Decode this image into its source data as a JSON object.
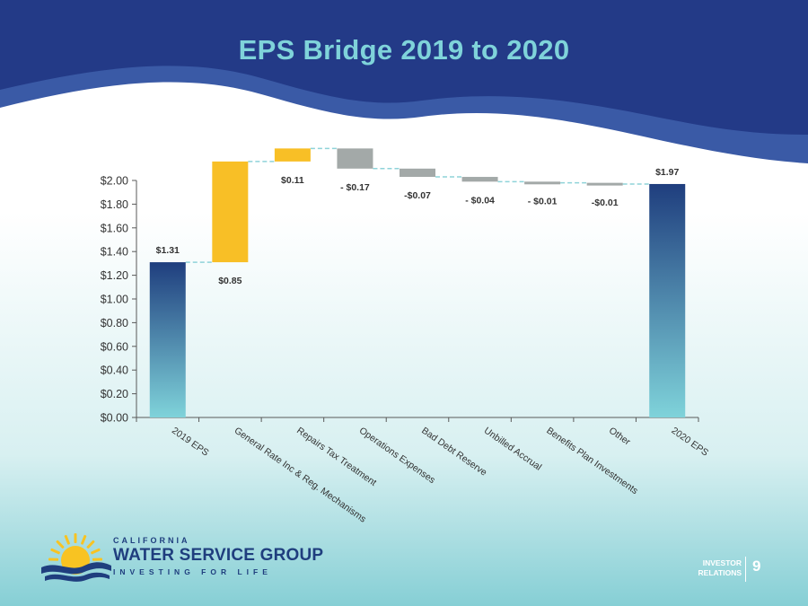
{
  "slide": {
    "title": "EPS Bridge 2019 to 2020",
    "page_number": "9",
    "footer_label_line1": "INVESTOR",
    "footer_label_line2": "RELATIONS"
  },
  "logo": {
    "line1": "CALIFORNIA",
    "line2": "WATER SERVICE GROUP",
    "line3": "INVESTING FOR LIFE"
  },
  "colors": {
    "header_dark": "#233a87",
    "title_color": "#7fd3da",
    "total_top": "#1f3e7e",
    "total_bottom": "#7fd3da",
    "increase": "#f8bf26",
    "decrease": "#a3a9a8",
    "connector": "#8fd3d9"
  },
  "chart_data": {
    "type": "bar",
    "subtype": "waterfall",
    "categories": [
      "2019 EPS",
      "General Rate Inc & Reg. Mechanisms",
      "Repairs Tax Treatment",
      "Operations Expenses",
      "Bad Debt Reserve",
      "Unbilled Accrual",
      "Benefits Plan Investments",
      "Other",
      "2020 EPS"
    ],
    "values": [
      1.31,
      0.85,
      0.11,
      -0.17,
      -0.07,
      -0.04,
      -0.01,
      -0.01,
      1.97
    ],
    "kinds": [
      "total",
      "increase",
      "increase",
      "decrease",
      "decrease",
      "decrease",
      "decrease",
      "decrease",
      "total"
    ],
    "data_labels": [
      "$1.31",
      "$0.85",
      "$0.11",
      "- $0.17",
      "-$0.07",
      "- $0.04",
      "- $0.01",
      "-$0.01",
      "$1.97"
    ],
    "ylim": [
      0,
      2.0
    ],
    "yticks": [
      "$0.00",
      "$0.20",
      "$0.40",
      "$0.60",
      "$0.80",
      "$1.00",
      "$1.20",
      "$1.40",
      "$1.60",
      "$1.80",
      "$2.00"
    ],
    "ytick_values": [
      0,
      0.2,
      0.4,
      0.6,
      0.8,
      1.0,
      1.2,
      1.4,
      1.6,
      1.8,
      2.0
    ],
    "grid": false,
    "legend": "none"
  }
}
